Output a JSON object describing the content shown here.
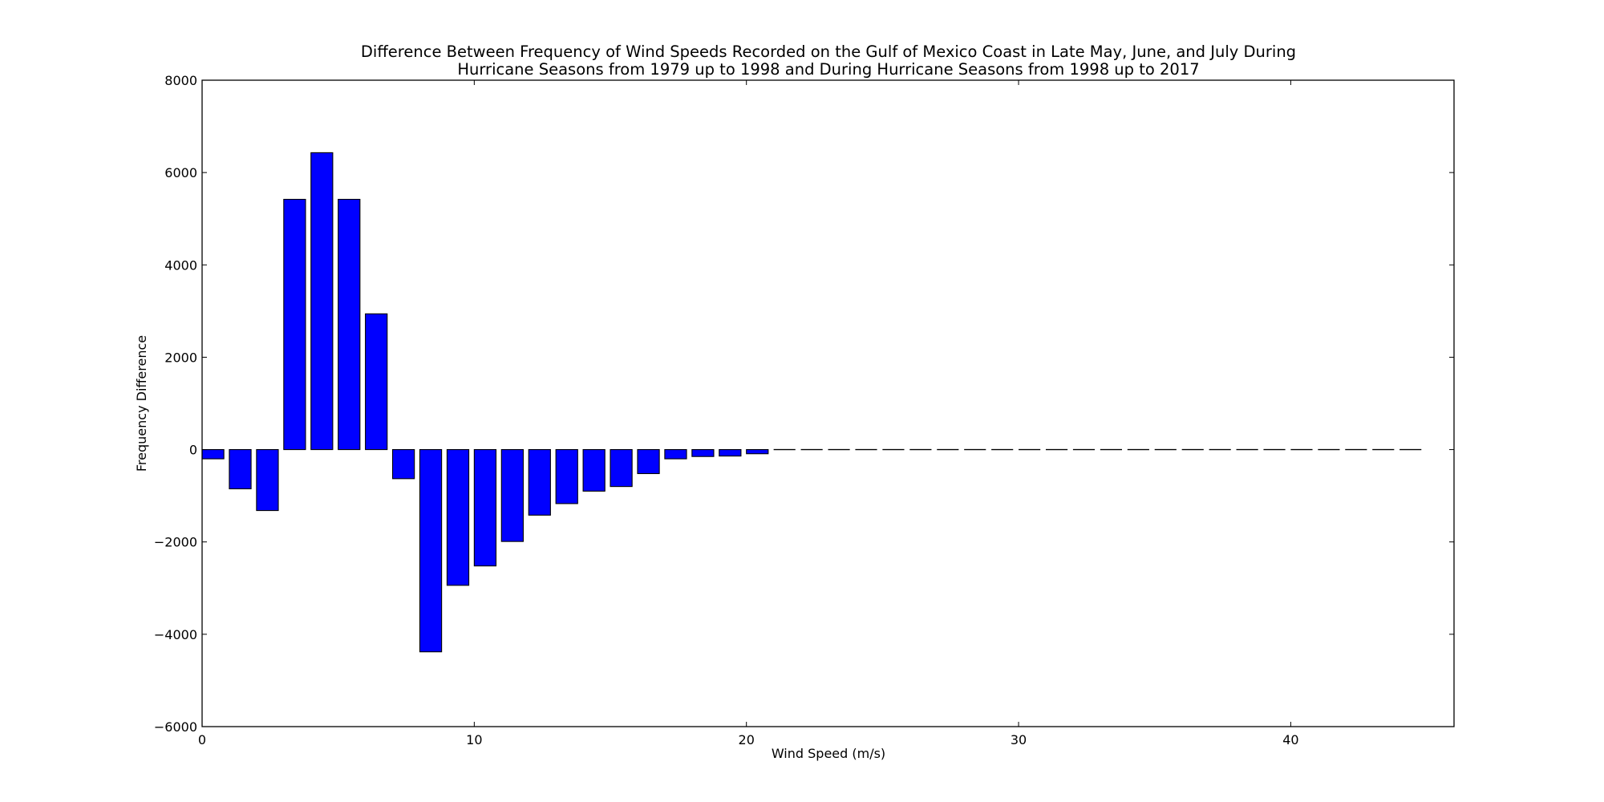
{
  "chart_data": {
    "type": "bar",
    "title": [
      "Difference Between Frequency of Wind Speeds Recorded on the Gulf of Mexico Coast in Late May, June, and July During",
      "Hurricane Seasons from 1979 up to 1998 and During Hurricane Seasons from 1998 up to 2017"
    ],
    "xlabel": "Wind Speed (m/s)",
    "ylabel": "Frequency Difference",
    "xlim": [
      0,
      46
    ],
    "ylim": [
      -6000,
      8000
    ],
    "x_ticks": [
      0,
      10,
      20,
      30,
      40
    ],
    "y_ticks": [
      -6000,
      -4000,
      -2000,
      0,
      2000,
      4000,
      6000,
      8000
    ],
    "x_tick_labels": [
      "0",
      "10",
      "20",
      "30",
      "40"
    ],
    "y_tick_labels": [
      "−6000",
      "−4000",
      "−2000",
      "0",
      "2000",
      "4000",
      "6000",
      "8000"
    ],
    "bar_width": 0.8,
    "bar_color": "#0000ff",
    "bar_edge_color": "#000000",
    "grid": false,
    "x": [
      0,
      1,
      2,
      3,
      4,
      5,
      6,
      7,
      8,
      9,
      10,
      11,
      12,
      13,
      14,
      15,
      16,
      17,
      18,
      19,
      20,
      21,
      22,
      23,
      24,
      25,
      26,
      27,
      28,
      29,
      30,
      31,
      32,
      33,
      34,
      35,
      36,
      37,
      38,
      39,
      40,
      41,
      42,
      43,
      44
    ],
    "values": [
      -200,
      -850,
      -1320,
      5420,
      6430,
      5420,
      2940,
      -630,
      -4380,
      -2940,
      -2520,
      -1990,
      -1420,
      -1170,
      -900,
      -800,
      -520,
      -200,
      -150,
      -140,
      -90,
      0,
      0,
      0,
      0,
      0,
      0,
      0,
      0,
      0,
      0,
      0,
      0,
      0,
      0,
      0,
      0,
      0,
      0,
      0,
      0,
      0,
      0,
      0,
      0
    ]
  }
}
